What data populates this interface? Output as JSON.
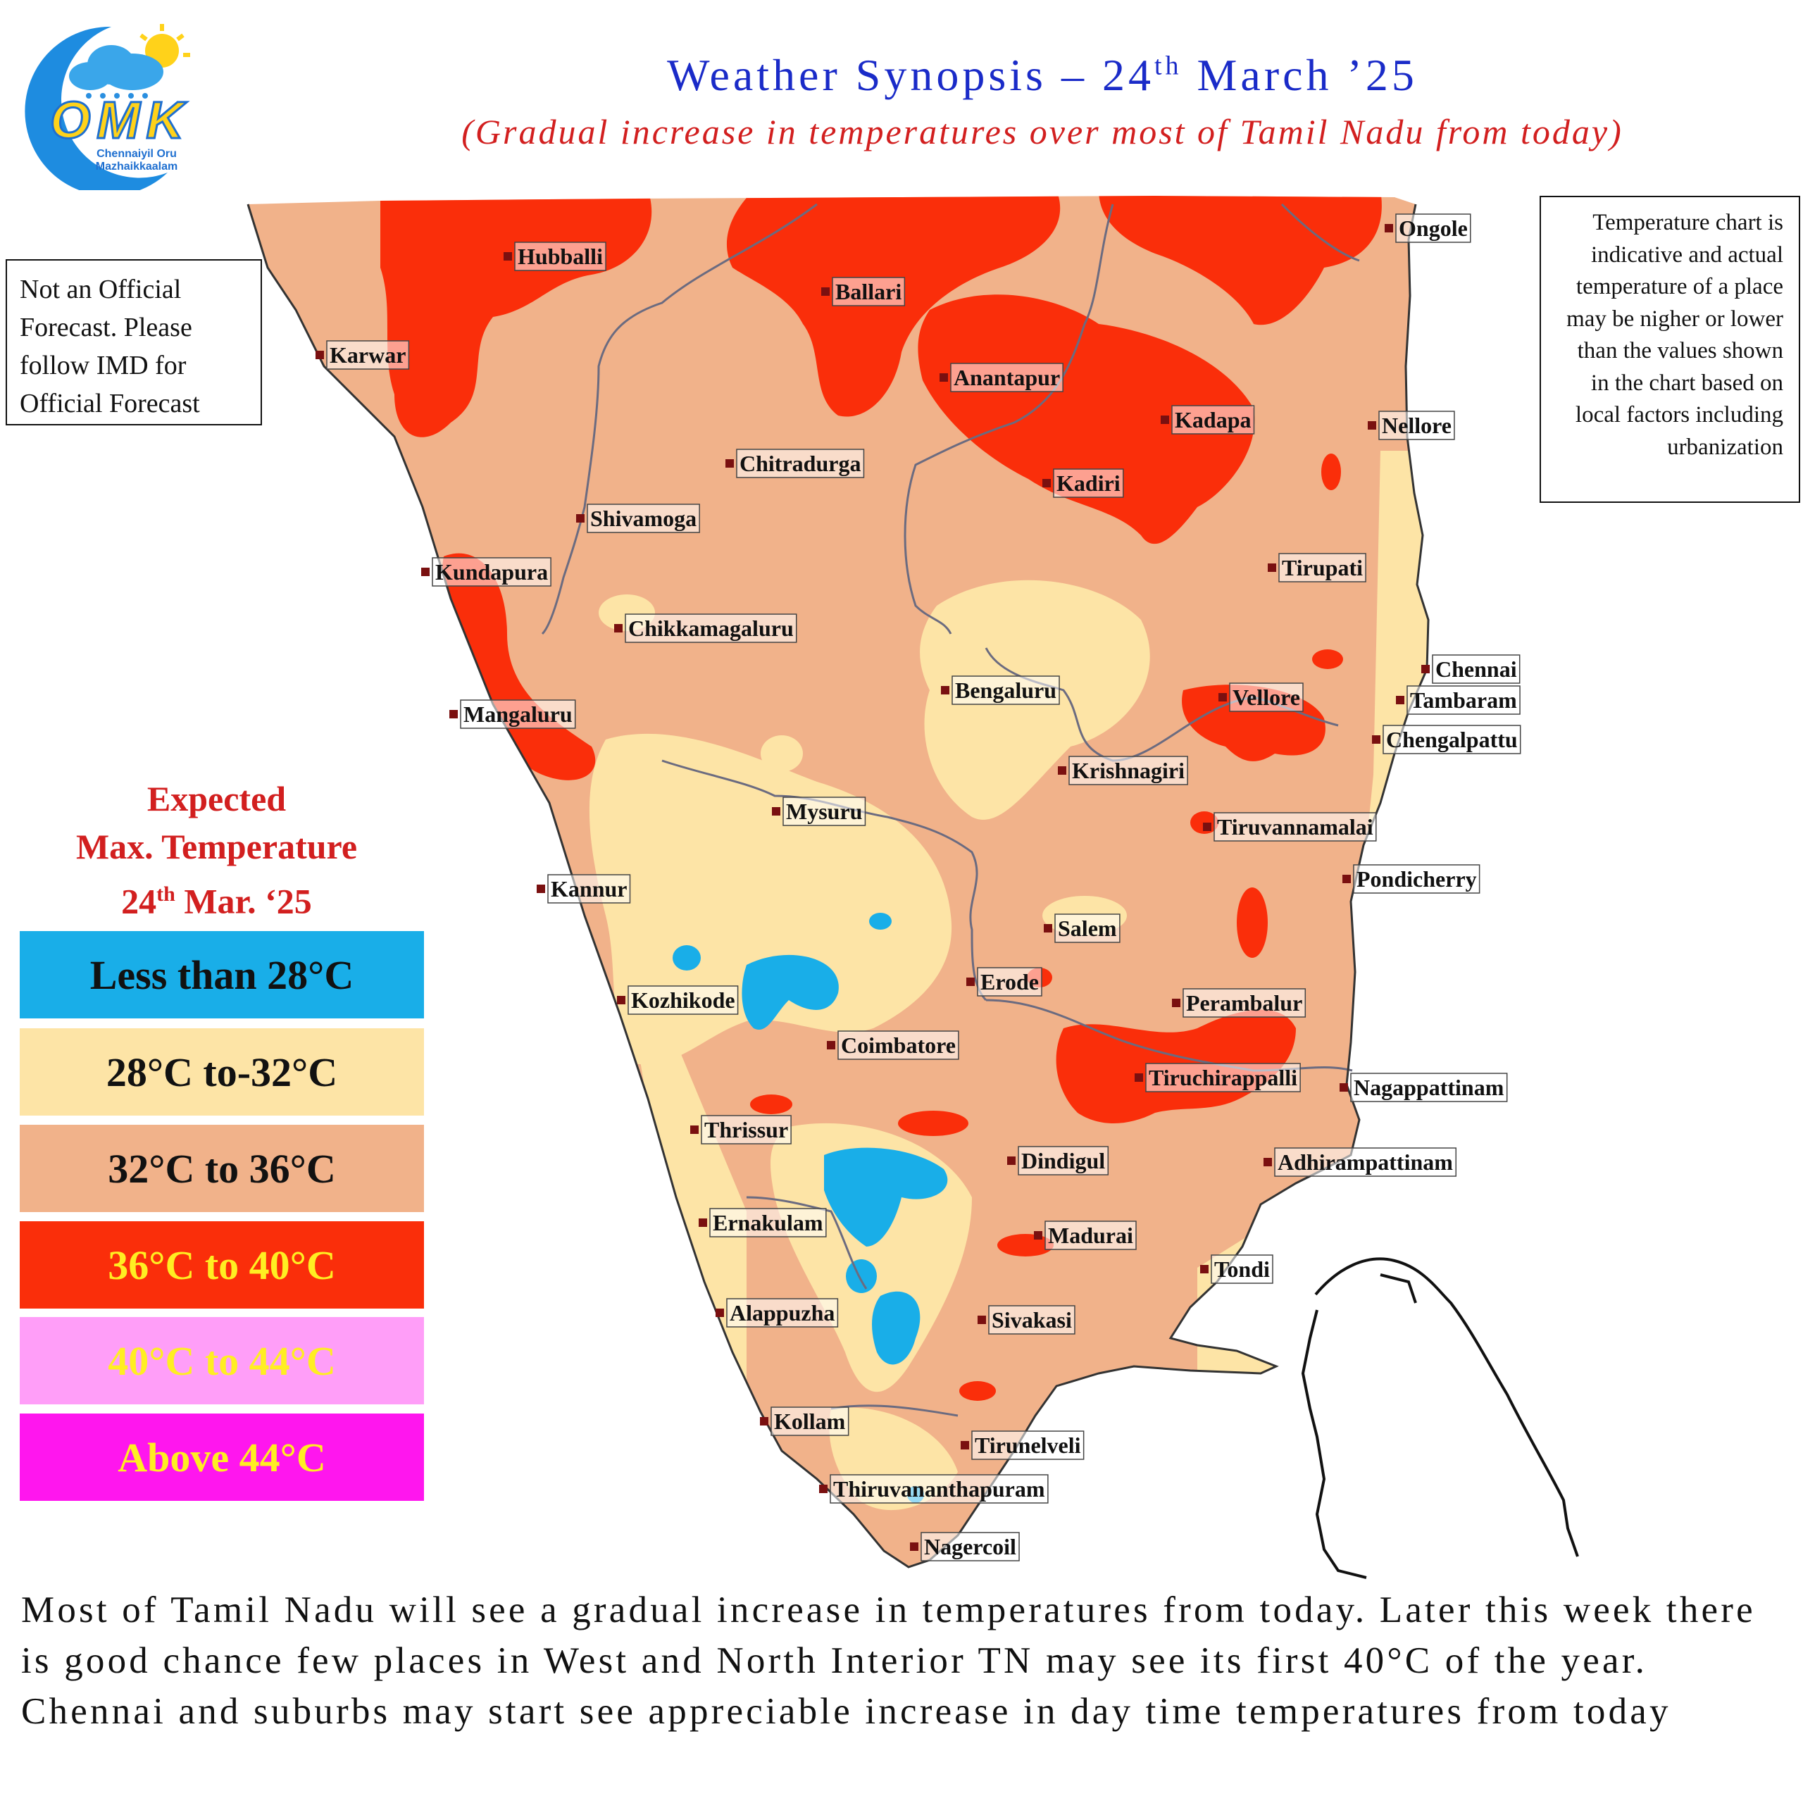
{
  "logo": {
    "name": "OMK",
    "text_line1": "Chennaiyil Oru",
    "text_line2": "Mazhaikkaalam"
  },
  "header": {
    "title_prefix": "Weather Synopsis – 24",
    "title_sup": "th",
    "title_suffix": " March ’25",
    "subtitle": "(Gradual increase in temperatures over most of Tamil Nadu from today)"
  },
  "disclaimer": "Not an Official Forecast. Please follow IMD for Official Forecast",
  "chart_note": "Temperature chart is indicative and actual temperature of a place may be nigher or lower than the values shown in the chart based on local factors including urbanization",
  "legend": {
    "title_line1": "Expected",
    "title_line2": "Max. Temperature",
    "title_line3_prefix": "24",
    "title_line3_sup": "th",
    "title_line3_suffix": " Mar. ‘25",
    "items": [
      {
        "label": "Less than 28°C",
        "color": "#19aee8",
        "text_color": "#111111"
      },
      {
        "label": "28°C to-32°C",
        "color": "#fde4a6",
        "text_color": "#111111"
      },
      {
        "label": "32°C to 36°C",
        "color": "#f1b28a",
        "text_color": "#111111"
      },
      {
        "label": "36°C to 40°C",
        "color": "#fa2e0a",
        "text_color": "#ffee22"
      },
      {
        "label": "40°C to 44°C",
        "color": "#ff9ef8",
        "text_color": "#ffee22"
      },
      {
        "label": "Above 44°C",
        "color": "#ff16ee",
        "text_color": "#ffee22"
      }
    ]
  },
  "cities": [
    "Hubballi",
    "Ballari",
    "Ongole",
    "Karwar",
    "Anantapur",
    "Kadapa",
    "Nellore",
    "Chitradurga",
    "Kadiri",
    "Shivamoga",
    "Tirupati",
    "Kundapura",
    "Chikkamagaluru",
    "Chennai",
    "Bengaluru",
    "Vellore",
    "Tambaram",
    "Mangaluru",
    "Chengalpattu",
    "Krishnagiri",
    "Mysuru",
    "Tiruvannamalai",
    "Kannur",
    "Pondicherry",
    "Salem",
    "Erode",
    "Kozhikode",
    "Perambalur",
    "Coimbatore",
    "Tiruchirappalli",
    "Nagappattinam",
    "Thrissur",
    "Dindigul",
    "Adhirampattinam",
    "Ernakulam",
    "Madurai",
    "Tondi",
    "Alappuzha",
    "Sivakasi",
    "Kollam",
    "Tirunelveli",
    "Thiruvananthapuram",
    "Nagercoil"
  ],
  "bottom_text": "Most of Tamil Nadu will see a gradual increase in temperatures from today. Later this week there is good chance few places in West and North Interior TN may see its first 40°C of the year. Chennai and suburbs may start see appreciable increase in day time temperatures from today"
}
